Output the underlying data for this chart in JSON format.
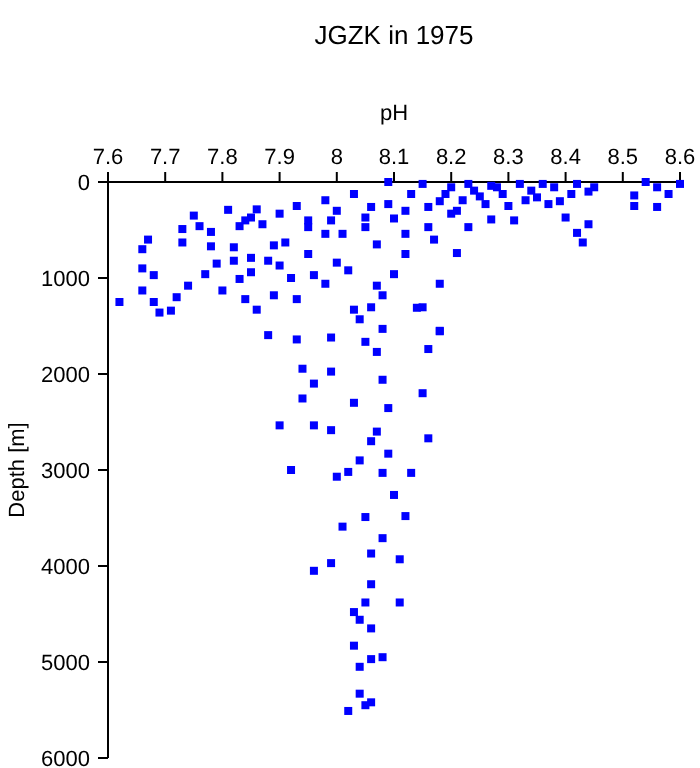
{
  "chart_data": {
    "type": "scatter",
    "title": "JGZK in 1975",
    "xlabel": "pH",
    "ylabel": "Depth [m]",
    "xlim": [
      7.6,
      8.6
    ],
    "xticks": [
      7.6,
      7.7,
      7.8,
      7.9,
      8,
      8.1,
      8.2,
      8.3,
      8.4,
      8.5,
      8.6
    ],
    "ylim": [
      6000,
      0
    ],
    "yticks": [
      0,
      1000,
      2000,
      3000,
      4000,
      5000,
      6000
    ],
    "grid": false,
    "marker": "square",
    "series": [
      {
        "color": "#0000ff",
        "x": [
          7.62,
          7.66,
          7.66,
          7.67,
          7.68,
          7.66,
          7.68,
          7.69,
          7.71,
          7.73,
          7.73,
          7.72,
          7.74,
          7.75,
          7.76,
          7.78,
          7.78,
          7.77,
          7.79,
          7.81,
          7.8,
          7.82,
          7.82,
          7.83,
          7.83,
          7.84,
          7.84,
          7.85,
          7.85,
          7.86,
          7.85,
          7.86,
          7.87,
          7.88,
          7.89,
          7.89,
          7.9,
          7.9,
          7.91,
          7.92,
          7.93,
          7.93,
          7.95,
          7.95,
          7.95,
          7.96,
          7.98,
          7.98,
          7.98,
          7.99,
          7.99,
          8.0,
          8.0,
          8.01,
          8.02,
          8.03,
          8.03,
          8.04,
          8.05,
          8.05,
          8.06,
          8.07,
          8.07,
          8.08,
          8.09,
          8.09,
          8.1,
          8.12,
          8.12,
          8.13,
          8.14,
          8.15,
          8.16,
          8.16,
          8.17,
          8.18,
          8.18,
          8.19,
          8.2,
          8.2,
          8.21,
          8.22,
          8.23,
          8.23,
          8.24,
          8.26,
          8.27,
          8.28,
          8.29,
          8.31,
          8.32,
          8.33,
          8.34,
          8.36,
          8.37,
          8.38,
          8.4,
          8.41,
          8.42,
          8.43,
          8.42,
          8.44,
          8.45,
          8.52,
          8.52,
          8.54,
          8.56,
          8.56,
          8.58,
          8.6,
          8.18,
          8.25,
          8.3,
          8.35,
          8.21,
          8.27,
          8.39,
          8.44,
          8.12,
          8.1,
          8.06,
          8.15,
          8.18,
          8.08,
          7.88,
          7.93,
          8.05,
          8.07,
          8.16,
          7.94,
          7.99,
          8.08,
          7.96,
          7.94,
          8.03,
          8.09,
          8.15,
          7.9,
          7.96,
          7.99,
          8.07,
          8.16,
          8.06,
          8.09,
          8.04,
          7.92,
          8.0,
          8.02,
          8.08,
          8.13,
          8.1,
          8.05,
          8.01,
          8.12,
          8.08,
          8.06,
          7.96,
          7.99,
          8.11,
          8.06,
          8.05,
          8.11,
          8.03,
          8.04,
          8.06,
          8.03,
          8.08,
          8.06,
          8.04,
          8.04,
          8.06,
          8.05,
          8.02
        ],
        "values": [
          1250,
          700,
          900,
          600,
          970,
          1130,
          1250,
          1360,
          1340,
          630,
          490,
          1200,
          1080,
          350,
          460,
          520,
          670,
          960,
          850,
          290,
          1130,
          680,
          820,
          1010,
          460,
          1220,
          400,
          370,
          790,
          285,
          940,
          1330,
          440,
          820,
          660,
          1180,
          870,
          330,
          630,
          1000,
          250,
          1220,
          750,
          470,
          400,
          970,
          1060,
          540,
          190,
          1620,
          400,
          840,
          300,
          540,
          920,
          1330,
          125,
          1430,
          370,
          470,
          260,
          1080,
          650,
          1180,
          0,
          230,
          960,
          750,
          540,
          125,
          1310,
          20,
          260,
          470,
          600,
          1060,
          1550,
          125,
          55,
          330,
          740,
          190,
          20,
          470,
          90,
          230,
          390,
          55,
          125,
          400,
          20,
          190,
          90,
          20,
          230,
          55,
          370,
          125,
          530,
          630,
          20,
          440,
          55,
          140,
          250,
          0,
          260,
          55,
          125,
          20,
          200,
          150,
          250,
          160,
          300,
          40,
          200,
          100,
          300,
          380,
          1305,
          1305,
          1555,
          1530,
          1595,
          1640,
          1665,
          1770,
          1740,
          1945,
          1975,
          2060,
          2100,
          2255,
          2300,
          2355,
          2200,
          2535,
          2535,
          2585,
          2600,
          2670,
          2700,
          2830,
          2900,
          3000,
          3070,
          3020,
          3030,
          3030,
          3260,
          3490,
          3590,
          3480,
          3710,
          3870,
          4050,
          3970,
          3930,
          4190,
          4380,
          4380,
          4480,
          4560,
          4650,
          4830,
          4950,
          4970,
          5050,
          5330,
          5420,
          5450,
          5510
        ]
      }
    ]
  }
}
